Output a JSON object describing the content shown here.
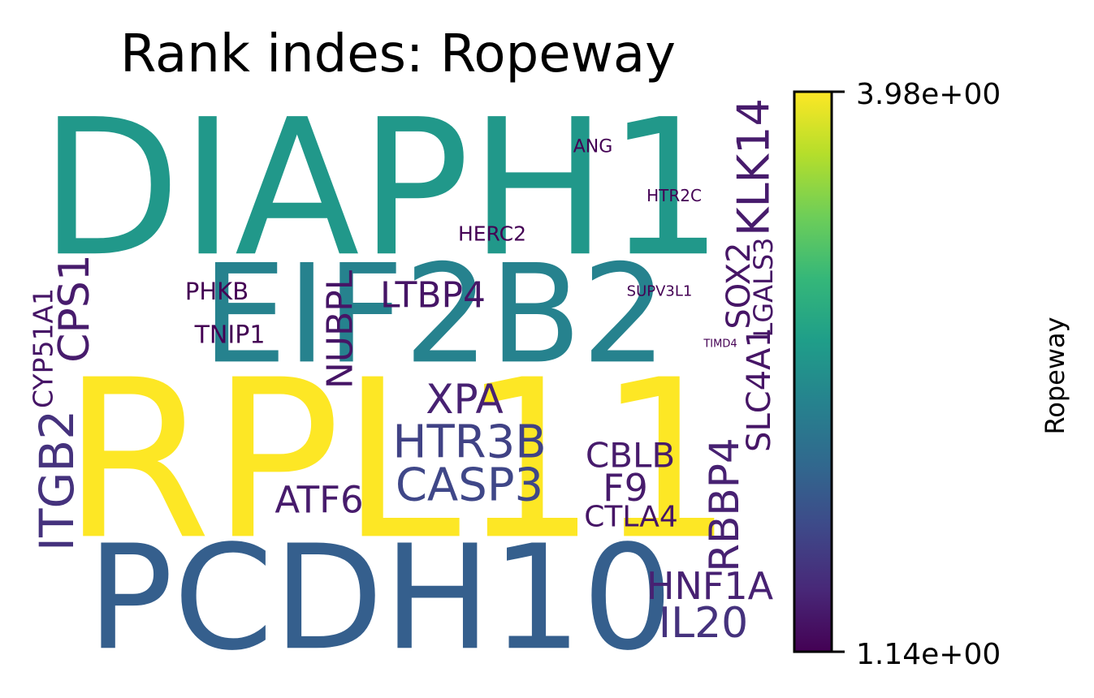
{
  "chart_data": {
    "type": "wordcloud",
    "title": "Rank indes: Ropeway",
    "colorbar": {
      "label": "Ropeway",
      "colormap": "viridis",
      "min": 1.14,
      "max": 3.98,
      "min_label": "1.14e+00",
      "max_label": "3.98e+00",
      "colors": [
        "#440154",
        "#482878",
        "#3e4989",
        "#31688e",
        "#26828e",
        "#1f9e89",
        "#35b779",
        "#6ece58",
        "#b5de2b",
        "#fde725"
      ]
    },
    "words": [
      {
        "text": "DIAPH1",
        "value": 2.65
      },
      {
        "text": "EIF2B2",
        "value": 2.4
      },
      {
        "text": "RPL11",
        "value": 3.98
      },
      {
        "text": "PCDH10",
        "value": 2.0
      },
      {
        "text": "ANG",
        "value": 1.14
      },
      {
        "text": "HTR2C",
        "value": 1.14
      },
      {
        "text": "HERC2",
        "value": 1.14
      },
      {
        "text": "KLK14",
        "value": 1.35
      },
      {
        "text": "PHKB",
        "value": 1.14
      },
      {
        "text": "SUPV3L1",
        "value": 1.14
      },
      {
        "text": "TNIP1",
        "value": 1.14
      },
      {
        "text": "TIMD4",
        "value": 1.14
      },
      {
        "text": "LTBP4",
        "value": 1.3
      },
      {
        "text": "NUBPL",
        "value": 1.3
      },
      {
        "text": "CPS1",
        "value": 1.35
      },
      {
        "text": "CYP51A1",
        "value": 1.3
      },
      {
        "text": "SOX2",
        "value": 1.3
      },
      {
        "text": "LGALS3",
        "value": 1.3
      },
      {
        "text": "SLC4A1",
        "value": 1.3
      },
      {
        "text": "XPA",
        "value": 1.4
      },
      {
        "text": "HTR3B",
        "value": 1.7
      },
      {
        "text": "CASP3",
        "value": 1.75
      },
      {
        "text": "CBLB",
        "value": 1.35
      },
      {
        "text": "F9",
        "value": 1.35
      },
      {
        "text": "CTLA4",
        "value": 1.3
      },
      {
        "text": "ATF6",
        "value": 1.35
      },
      {
        "text": "ITGB2",
        "value": 1.55
      },
      {
        "text": "RBBP4",
        "value": 1.4
      },
      {
        "text": "HNF1A",
        "value": 1.4
      },
      {
        "text": "IL20",
        "value": 1.55
      }
    ]
  }
}
